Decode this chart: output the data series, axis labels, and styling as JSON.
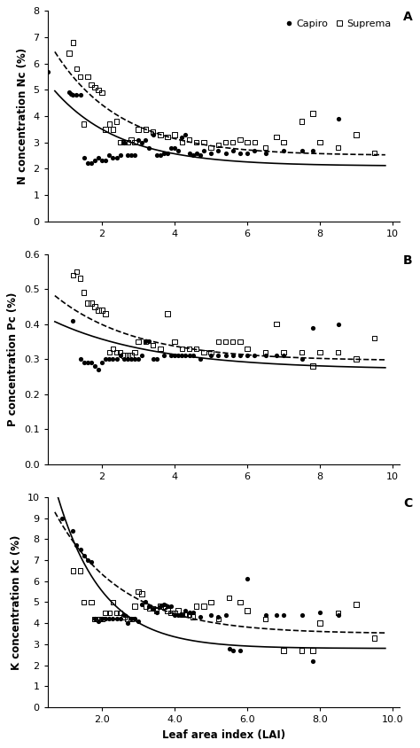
{
  "panel_A": {
    "label": "A",
    "ylabel": "N concentration Nc (%)",
    "ylim": [
      0,
      8
    ],
    "yticks": [
      0,
      1,
      2,
      3,
      4,
      5,
      6,
      7,
      8
    ],
    "xlim": [
      0.5,
      10.2
    ],
    "xticks": [
      2,
      4,
      6,
      8,
      10
    ],
    "xticklabels": [
      "2",
      "4",
      "6",
      "8",
      "10"
    ],
    "capiro_x": [
      0.5,
      1.1,
      1.15,
      1.2,
      1.3,
      1.4,
      1.5,
      1.6,
      1.7,
      1.8,
      1.9,
      2.0,
      2.1,
      2.2,
      2.3,
      2.4,
      2.5,
      2.6,
      2.7,
      2.8,
      2.9,
      3.0,
      3.1,
      3.2,
      3.3,
      3.4,
      3.5,
      3.6,
      3.7,
      3.8,
      3.9,
      4.0,
      4.1,
      4.2,
      4.3,
      4.4,
      4.5,
      4.6,
      4.7,
      4.8,
      5.0,
      5.2,
      5.4,
      5.6,
      5.8,
      6.0,
      6.2,
      6.5,
      7.0,
      7.5,
      7.8,
      8.5
    ],
    "capiro_y": [
      5.7,
      4.9,
      4.85,
      4.8,
      4.8,
      4.8,
      2.4,
      2.2,
      2.2,
      2.3,
      2.4,
      2.3,
      2.3,
      2.5,
      2.4,
      2.4,
      2.5,
      3.0,
      2.5,
      2.5,
      2.5,
      3.1,
      3.0,
      3.1,
      2.8,
      3.3,
      2.5,
      2.5,
      2.6,
      2.6,
      2.8,
      2.8,
      2.7,
      3.2,
      3.3,
      2.6,
      2.5,
      2.6,
      2.5,
      2.7,
      2.6,
      2.7,
      2.6,
      2.7,
      2.6,
      2.6,
      2.7,
      2.6,
      2.7,
      2.7,
      2.7,
      3.9
    ],
    "suprema_x": [
      1.1,
      1.2,
      1.3,
      1.4,
      1.5,
      1.6,
      1.7,
      1.8,
      1.9,
      2.0,
      2.1,
      2.2,
      2.3,
      2.4,
      2.5,
      2.6,
      2.7,
      2.8,
      2.9,
      3.0,
      3.2,
      3.4,
      3.6,
      3.8,
      4.0,
      4.2,
      4.4,
      4.6,
      4.8,
      5.0,
      5.2,
      5.4,
      5.6,
      5.8,
      6.0,
      6.2,
      6.5,
      6.8,
      7.0,
      7.5,
      7.8,
      8.0,
      8.5,
      9.0,
      9.5
    ],
    "suprema_y": [
      6.4,
      6.8,
      5.8,
      5.5,
      3.7,
      5.5,
      5.2,
      5.1,
      5.0,
      4.9,
      3.5,
      3.7,
      3.5,
      3.8,
      3.0,
      3.0,
      3.0,
      3.1,
      3.0,
      3.5,
      3.5,
      3.4,
      3.3,
      3.2,
      3.3,
      3.0,
      3.1,
      3.0,
      3.0,
      2.8,
      2.9,
      3.0,
      3.0,
      3.1,
      3.0,
      3.0,
      2.8,
      3.2,
      3.0,
      3.8,
      4.1,
      3.0,
      2.8,
      3.3,
      2.6
    ],
    "curve_capiro_a": 4.2,
    "curve_capiro_b": -0.55,
    "curve_capiro_c": 2.1,
    "curve_suprema_a": 5.8,
    "curve_suprema_b": -0.55,
    "curve_suprema_c": 2.5
  },
  "panel_B": {
    "label": "B",
    "ylabel": "P concentration Pc (%)",
    "ylim": [
      0,
      0.6
    ],
    "yticks": [
      0,
      0.1,
      0.2,
      0.3,
      0.4,
      0.5,
      0.6
    ],
    "xlim": [
      0.5,
      10.2
    ],
    "xticks": [
      2,
      4,
      6,
      8,
      10
    ],
    "xticklabels": [
      "2",
      "4",
      "6",
      "8",
      "10"
    ],
    "capiro_x": [
      1.2,
      1.4,
      1.5,
      1.6,
      1.7,
      1.8,
      1.9,
      2.0,
      2.1,
      2.2,
      2.3,
      2.4,
      2.5,
      2.6,
      2.7,
      2.8,
      2.9,
      3.0,
      3.1,
      3.2,
      3.3,
      3.4,
      3.5,
      3.7,
      3.9,
      4.0,
      4.1,
      4.2,
      4.3,
      4.4,
      4.5,
      4.7,
      5.0,
      5.2,
      5.4,
      5.6,
      5.8,
      6.0,
      6.2,
      6.5,
      6.8,
      7.0,
      7.5,
      7.8,
      8.5
    ],
    "capiro_y": [
      0.41,
      0.3,
      0.29,
      0.29,
      0.29,
      0.28,
      0.27,
      0.29,
      0.3,
      0.3,
      0.3,
      0.3,
      0.31,
      0.3,
      0.3,
      0.3,
      0.3,
      0.3,
      0.31,
      0.35,
      0.35,
      0.3,
      0.3,
      0.31,
      0.31,
      0.31,
      0.31,
      0.31,
      0.31,
      0.31,
      0.31,
      0.3,
      0.31,
      0.31,
      0.31,
      0.31,
      0.31,
      0.31,
      0.31,
      0.31,
      0.31,
      0.31,
      0.3,
      0.39,
      0.4
    ],
    "suprema_x": [
      1.2,
      1.3,
      1.4,
      1.5,
      1.6,
      1.7,
      1.8,
      1.9,
      2.0,
      2.1,
      2.2,
      2.3,
      2.4,
      2.5,
      2.6,
      2.7,
      2.8,
      2.9,
      3.0,
      3.2,
      3.4,
      3.6,
      3.8,
      4.0,
      4.2,
      4.4,
      4.6,
      4.8,
      5.0,
      5.2,
      5.4,
      5.6,
      5.8,
      6.0,
      6.5,
      6.8,
      7.0,
      7.5,
      7.8,
      8.0,
      8.5,
      9.0,
      9.5
    ],
    "suprema_y": [
      0.54,
      0.55,
      0.53,
      0.49,
      0.46,
      0.46,
      0.45,
      0.44,
      0.44,
      0.43,
      0.32,
      0.33,
      0.32,
      0.32,
      0.31,
      0.31,
      0.31,
      0.32,
      0.35,
      0.35,
      0.34,
      0.33,
      0.43,
      0.35,
      0.33,
      0.33,
      0.33,
      0.32,
      0.32,
      0.35,
      0.35,
      0.35,
      0.35,
      0.33,
      0.32,
      0.4,
      0.32,
      0.32,
      0.28,
      0.32,
      0.32,
      0.3,
      0.36
    ],
    "curve_capiro_a": 0.175,
    "curve_capiro_b": -0.35,
    "curve_capiro_c": 0.27,
    "curve_suprema_a": 0.255,
    "curve_suprema_b": -0.45,
    "curve_suprema_c": 0.295
  },
  "panel_C": {
    "label": "C",
    "ylabel": "K concentration Kc (%)",
    "ylim": [
      0,
      10
    ],
    "yticks": [
      0,
      1,
      2,
      3,
      4,
      5,
      6,
      7,
      8,
      9,
      10
    ],
    "xlim": [
      0.5,
      10.2
    ],
    "xticks": [
      2.0,
      4.0,
      6.0,
      8.0,
      10.0
    ],
    "xticklabels": [
      "2.0",
      "4.0",
      "6.0",
      "8.0",
      "10.0"
    ],
    "xlabel": "Leaf area index (LAI)",
    "capiro_x": [
      0.9,
      1.2,
      1.3,
      1.4,
      1.5,
      1.6,
      1.7,
      1.8,
      1.9,
      2.0,
      2.1,
      2.2,
      2.3,
      2.4,
      2.5,
      2.6,
      2.7,
      2.8,
      2.9,
      3.0,
      3.1,
      3.2,
      3.3,
      3.4,
      3.5,
      3.6,
      3.7,
      3.8,
      3.9,
      4.0,
      4.1,
      4.2,
      4.3,
      4.4,
      4.5,
      4.7,
      5.0,
      5.2,
      5.4,
      5.5,
      5.6,
      5.8,
      6.0,
      6.5,
      6.8,
      7.0,
      7.5,
      7.8,
      8.0,
      8.5
    ],
    "capiro_y": [
      9.0,
      8.4,
      7.7,
      7.5,
      7.2,
      7.0,
      6.9,
      4.2,
      4.1,
      4.2,
      4.2,
      4.2,
      4.2,
      4.2,
      4.2,
      4.4,
      4.0,
      4.2,
      4.2,
      4.1,
      4.9,
      5.0,
      4.8,
      4.7,
      4.5,
      4.8,
      4.9,
      4.8,
      4.8,
      4.4,
      4.4,
      4.4,
      4.6,
      4.5,
      4.5,
      4.3,
      4.4,
      4.3,
      4.4,
      2.8,
      2.7,
      2.7,
      6.1,
      4.4,
      4.4,
      4.4,
      4.4,
      2.2,
      4.5,
      4.4
    ],
    "suprema_x": [
      1.2,
      1.4,
      1.5,
      1.7,
      1.8,
      1.9,
      2.0,
      2.1,
      2.2,
      2.3,
      2.4,
      2.5,
      2.6,
      2.7,
      2.8,
      2.9,
      3.0,
      3.1,
      3.2,
      3.3,
      3.4,
      3.5,
      3.6,
      3.7,
      3.8,
      3.9,
      4.0,
      4.1,
      4.2,
      4.3,
      4.4,
      4.5,
      4.6,
      4.8,
      5.0,
      5.2,
      5.5,
      5.8,
      6.0,
      6.5,
      7.0,
      7.5,
      7.8,
      8.0,
      8.5,
      9.0,
      9.5
    ],
    "suprema_y": [
      6.5,
      6.5,
      5.0,
      5.0,
      4.2,
      4.2,
      4.2,
      4.5,
      4.5,
      5.0,
      4.5,
      4.5,
      4.3,
      4.2,
      4.2,
      4.8,
      5.5,
      5.4,
      4.8,
      4.7,
      4.7,
      4.6,
      4.8,
      4.8,
      4.6,
      4.5,
      4.5,
      4.6,
      4.4,
      4.4,
      4.4,
      4.3,
      4.8,
      4.8,
      5.0,
      4.2,
      5.2,
      5.0,
      4.6,
      4.2,
      2.7,
      2.7,
      2.7,
      4.0,
      4.5,
      4.9,
      3.3
    ],
    "curve_capiro_a": 13.5,
    "curve_capiro_b": -0.8,
    "curve_capiro_c": 2.8,
    "curve_suprema_a": 8.5,
    "curve_suprema_b": -0.55,
    "curve_suprema_c": 3.5
  },
  "legend_capiro": "Capiro",
  "legend_suprema": "Suprema",
  "dot_color": "#000000",
  "square_color": "#000000"
}
